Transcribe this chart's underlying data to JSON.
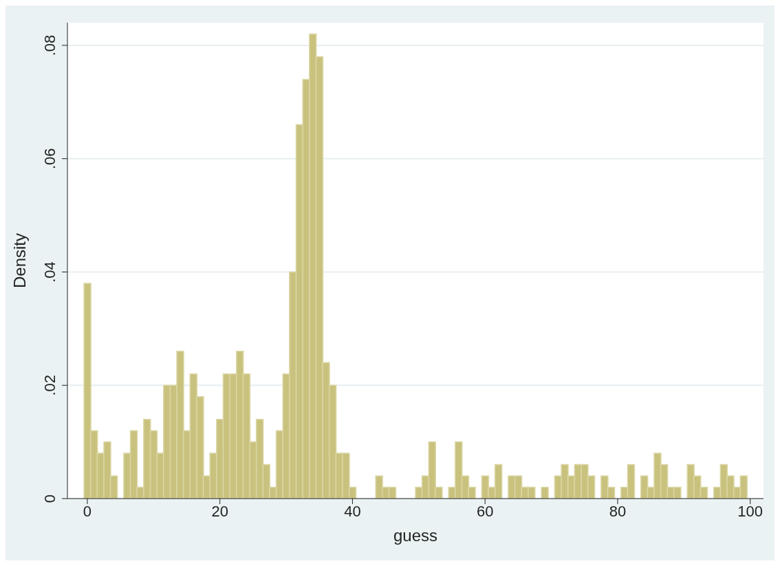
{
  "chart_data": {
    "type": "histogram",
    "xlabel": "guess",
    "ylabel": "Density",
    "bins": [
      -0.5,
      0.5,
      1.5,
      2.5,
      3.5,
      4.5,
      5.5,
      6.5,
      7.5,
      8.5,
      9.5,
      10.5,
      11.5,
      12.5,
      13.5,
      14.5,
      15.5,
      16.5,
      17.5,
      18.5,
      19.5,
      20.5,
      21.5,
      22.5,
      23.5,
      24.5,
      25.5,
      26.5,
      27.5,
      28.5,
      29.5,
      30.5,
      31.5,
      32.5,
      33.5,
      34.5,
      35.5,
      36.5,
      37.5,
      38.5,
      39.5,
      40.5,
      41.5,
      42.5,
      43.5,
      44.5,
      45.5,
      46.5,
      47.5,
      48.5,
      49.5,
      50.5,
      51.5,
      52.5,
      53.5,
      54.5,
      55.5,
      56.5,
      57.5,
      58.5,
      59.5,
      60.5,
      61.5,
      62.5,
      63.5,
      64.5,
      65.5,
      66.5,
      67.5,
      68.5,
      69.5,
      70.5,
      71.5,
      72.5,
      73.5,
      74.5,
      75.5,
      76.5,
      77.5,
      78.5,
      79.5,
      80.5,
      81.5,
      82.5,
      83.5,
      84.5,
      85.5,
      86.5,
      87.5,
      88.5,
      89.5,
      90.5,
      91.5,
      92.5,
      93.5,
      94.5,
      95.5,
      96.5,
      97.5,
      98.5,
      99.5
    ],
    "values": [
      0.038,
      0.012,
      0.008,
      0.01,
      0.004,
      0,
      0.008,
      0.012,
      0.002,
      0.014,
      0.012,
      0.008,
      0.02,
      0.02,
      0.026,
      0.012,
      0.022,
      0.018,
      0.004,
      0.008,
      0.014,
      0.022,
      0.022,
      0.026,
      0.022,
      0.01,
      0.014,
      0.006,
      0.002,
      0.012,
      0.022,
      0.04,
      0.066,
      0.074,
      0.082,
      0.078,
      0.024,
      0.02,
      0.008,
      0.008,
      0.002,
      0,
      0,
      0,
      0.004,
      0.002,
      0.002,
      0,
      0,
      0,
      0.002,
      0.004,
      0.01,
      0.002,
      0,
      0.002,
      0.01,
      0.004,
      0.002,
      0,
      0.004,
      0.002,
      0.006,
      0,
      0.004,
      0.004,
      0.002,
      0.002,
      0,
      0.002,
      0,
      0.004,
      0.006,
      0.004,
      0.006,
      0.006,
      0.004,
      0,
      0.004,
      0.002,
      0,
      0.002,
      0.006,
      0,
      0.004,
      0.002,
      0.008,
      0.006,
      0.002,
      0.002,
      0,
      0.006,
      0.004,
      0.002,
      0,
      0.002,
      0.006,
      0.004,
      0.002,
      0.004
    ],
    "color": "#c9c27e",
    "xlim": [
      -3,
      102
    ],
    "xticks": [
      0,
      20,
      40,
      60,
      80,
      100
    ],
    "ylim": [
      0,
      0.084
    ],
    "yticks": [
      {
        "value": 0,
        "label": "0"
      },
      {
        "value": 0.02,
        "label": ".02"
      },
      {
        "value": 0.04,
        "label": ".04"
      },
      {
        "value": 0.06,
        "label": ".06"
      },
      {
        "value": 0.08,
        "label": ".08"
      }
    ],
    "grid": "y"
  }
}
